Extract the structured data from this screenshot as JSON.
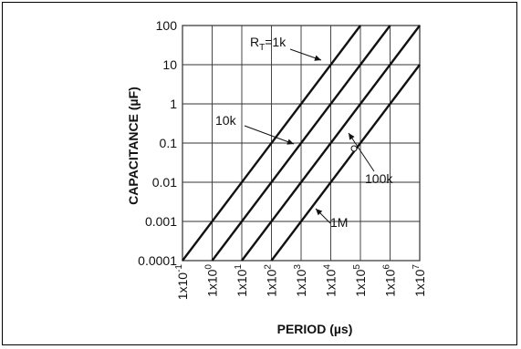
{
  "chart_data": {
    "type": "line",
    "xlabel": "PERIOD (µs)",
    "ylabel": "CAPACITANCE (µF)",
    "x_scale": "log",
    "y_scale": "log",
    "xlim": [
      0.1,
      10000000
    ],
    "ylim": [
      0.0001,
      100
    ],
    "grid": true,
    "x_ticks": [
      {
        "value": 0.1,
        "base": "1x10",
        "exp": "-1"
      },
      {
        "value": 1,
        "base": "1x10",
        "exp": "0"
      },
      {
        "value": 10,
        "base": "1x10",
        "exp": "1"
      },
      {
        "value": 100,
        "base": "1x10",
        "exp": "2"
      },
      {
        "value": 1000,
        "base": "1x10",
        "exp": "3"
      },
      {
        "value": 10000,
        "base": "1x10",
        "exp": "4"
      },
      {
        "value": 100000,
        "base": "1x10",
        "exp": "5"
      },
      {
        "value": 1000000,
        "base": "1x10",
        "exp": "6"
      },
      {
        "value": 10000000,
        "base": "1x10",
        "exp": "7"
      }
    ],
    "y_ticks": [
      {
        "value": 100,
        "label": "100"
      },
      {
        "value": 10,
        "label": "10"
      },
      {
        "value": 1,
        "label": "1"
      },
      {
        "value": 0.1,
        "label": "0.1"
      },
      {
        "value": 0.01,
        "label": "0.01"
      },
      {
        "value": 0.001,
        "label": "0.001"
      },
      {
        "value": 0.0001,
        "label": "0.0001"
      }
    ],
    "series": [
      {
        "rt": "1k",
        "points": [
          [
            0.1,
            0.0001
          ],
          [
            100000,
            100
          ]
        ]
      },
      {
        "rt": "10k",
        "points": [
          [
            1,
            0.0001
          ],
          [
            1000000,
            100
          ]
        ]
      },
      {
        "rt": "100k",
        "points": [
          [
            10,
            0.0001
          ],
          [
            10000000,
            100
          ]
        ]
      },
      {
        "rt": "1M",
        "points": [
          [
            100,
            0.0001
          ],
          [
            10000000,
            10
          ]
        ]
      }
    ],
    "annotations": [
      {
        "id": "rt1k",
        "prefix": "R",
        "subscript": "T",
        "suffix": "=1k",
        "target": [
          31623,
          31.6
        ]
      },
      {
        "id": "rt10k",
        "text": "10k",
        "target": [
          3162,
          0.1
        ]
      },
      {
        "id": "rt100k",
        "text": "100k",
        "target": [
          100000,
          0.6
        ]
      },
      {
        "id": "rt1m",
        "text": "1M",
        "target": [
          10000,
          0.0016
        ]
      }
    ]
  }
}
